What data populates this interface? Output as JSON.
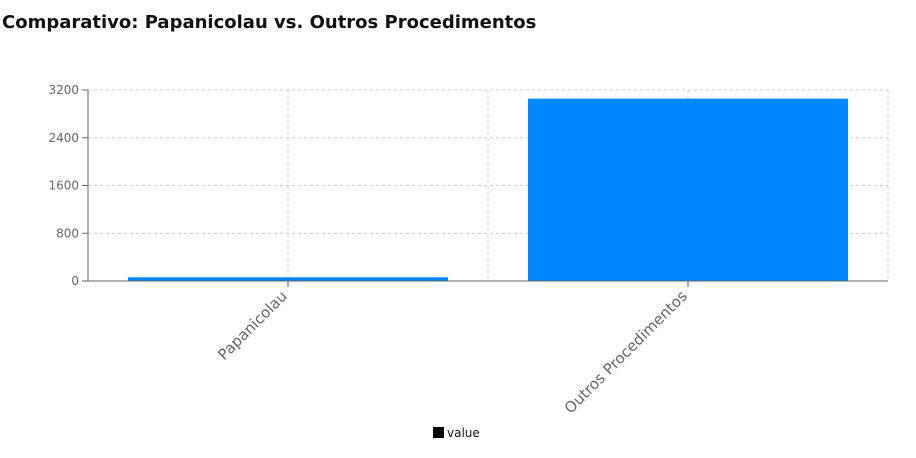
{
  "chart_data": {
    "type": "bar",
    "title": "Comparativo: Papanicolau vs. Outros Procedimentos",
    "categories": [
      "Papanicolau",
      "Outros Procedimentos"
    ],
    "series": [
      {
        "name": "value",
        "values": [
          62,
          3055
        ],
        "color": "#0088fe"
      }
    ],
    "ylim": [
      0,
      3200
    ],
    "yticks": [
      0,
      800,
      1600,
      2400,
      3200
    ],
    "grid": true,
    "legend": "bottom-center"
  }
}
